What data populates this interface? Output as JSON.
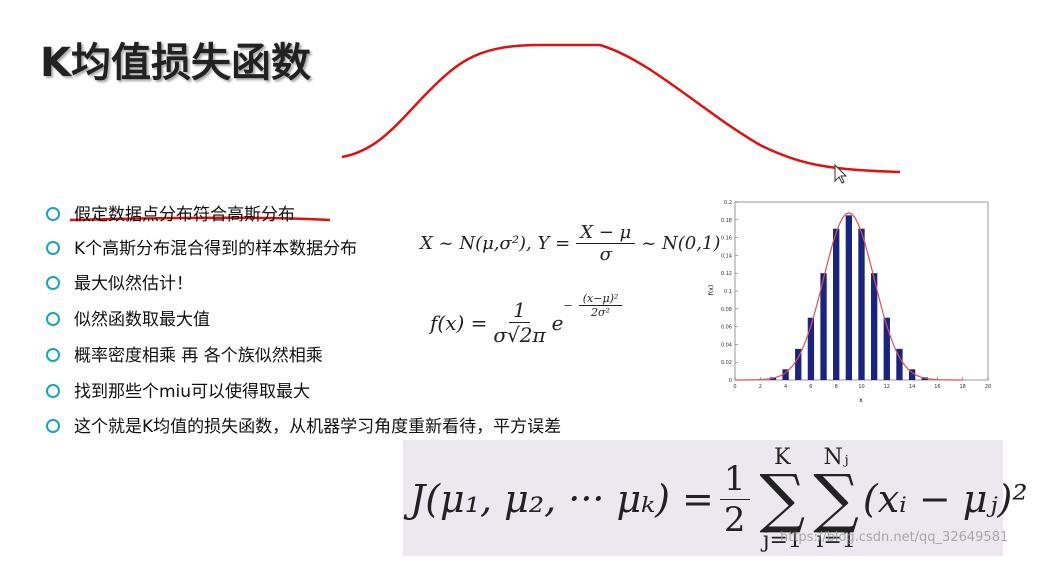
{
  "header": {
    "title": "K均值损失函数"
  },
  "bullets": [
    "假定数据点分布符合高斯分布",
    "K个高斯分布混合得到的样本数据分布",
    "最大似然估计！",
    "似然函数取最大值",
    "概率密度相乘 再 各个族似然相乘",
    "找到那些个miu可以使得取最大",
    "这个就是K均值的损失函数，从机器学习角度重新看待，平方误差"
  ],
  "formulas": {
    "normal": {
      "lhs": "X ~ N(μ,σ²), Y =",
      "num": "X − μ",
      "den": "σ",
      "rhs": "~ N(0,1)"
    },
    "pdf": {
      "lhs": "f(x) =",
      "num": "1",
      "den": "σ√2π",
      "base": "e",
      "sign": "−",
      "exp_num": "(x−μ)²",
      "exp_den": "2σ²"
    },
    "loss": {
      "lhs": "J(μ₁, μ₂, ··· μₖ) =",
      "num": "1",
      "den": "2",
      "sigma": "∑",
      "sum1_top": "K",
      "sum1_bottom": "j=1",
      "sum2_top": "Nⱼ",
      "sum2_bottom": "i=1",
      "body": "(xᵢ − μⱼ)²"
    }
  },
  "chart_data": {
    "type": "bar",
    "x": [
      3,
      4,
      5,
      6,
      7,
      8,
      9,
      10,
      11,
      12,
      13,
      14,
      15
    ],
    "values": [
      0.003,
      0.012,
      0.035,
      0.07,
      0.12,
      0.17,
      0.185,
      0.17,
      0.12,
      0.07,
      0.035,
      0.012,
      0.003
    ],
    "color": "#1a237e",
    "xlabel": "x",
    "ylabel": "f(x)",
    "xlim": [
      0,
      20
    ],
    "xticks": [
      0,
      2,
      4,
      6,
      8,
      10,
      12,
      14,
      16,
      18,
      20
    ],
    "ylim": [
      0,
      0.2
    ],
    "yticks": [
      0,
      0.02,
      0.04,
      0.06,
      0.08,
      0.1,
      0.12,
      0.14,
      0.16,
      0.18,
      0.2
    ]
  },
  "watermark": "https://blog.csdn.net/qq_32649581"
}
